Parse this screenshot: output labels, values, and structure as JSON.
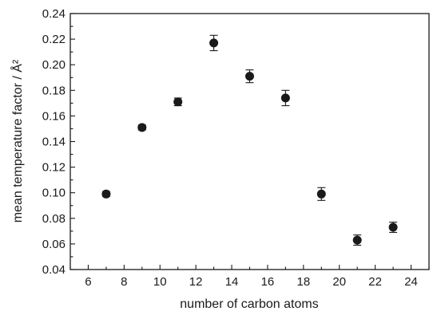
{
  "chart_data": {
    "type": "scatter",
    "title": "",
    "xlabel": "number of carbon atoms",
    "ylabel": "mean temperature factor / Å²",
    "xlim": [
      5,
      25
    ],
    "ylim": [
      0.04,
      0.24
    ],
    "x_ticks": [
      "6",
      "8",
      "10",
      "12",
      "14",
      "16",
      "18",
      "20",
      "22",
      "24"
    ],
    "y_ticks": [
      "0.04",
      "0.06",
      "0.08",
      "0.10",
      "0.12",
      "0.14",
      "0.16",
      "0.18",
      "0.20",
      "0.22",
      "0.24"
    ],
    "grid": false,
    "legend": "none",
    "marker_color": "#1a1a1a",
    "series": [
      {
        "points": [
          {
            "x": 7,
            "y": 0.099,
            "err": 0.002
          },
          {
            "x": 9,
            "y": 0.151,
            "err": 0.002
          },
          {
            "x": 11,
            "y": 0.171,
            "err": 0.003
          },
          {
            "x": 13,
            "y": 0.217,
            "err": 0.006
          },
          {
            "x": 15,
            "y": 0.191,
            "err": 0.005
          },
          {
            "x": 17,
            "y": 0.174,
            "err": 0.006
          },
          {
            "x": 19,
            "y": 0.099,
            "err": 0.005
          },
          {
            "x": 21,
            "y": 0.063,
            "err": 0.004
          },
          {
            "x": 23,
            "y": 0.073,
            "err": 0.004
          }
        ]
      }
    ]
  }
}
